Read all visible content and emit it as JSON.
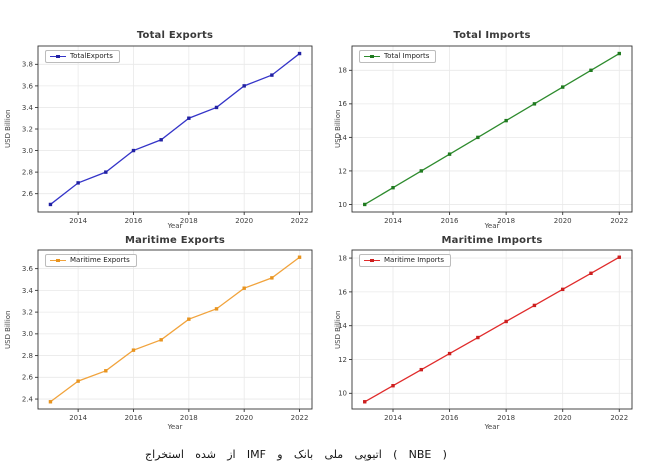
{
  "figure": {
    "background": "#ffffff",
    "colors": {
      "grid": "#e9e9e9",
      "spine": "#333333",
      "tick_label": "#3d3d3d",
      "title": "#3a3a3a"
    },
    "caption": {
      "text": "استخراج شده از IMF و بانک ملی اتیوپی ( NBE )",
      "words": [
        "استخراج",
        "شده",
        "از",
        "IMF",
        "و",
        "بانک",
        "ملی",
        "اتیوپی",
        "(",
        "NBE",
        ")"
      ]
    }
  },
  "chart_data": [
    {
      "type": "line",
      "title": "Total Exports",
      "legend": "TotalExports",
      "legend_position": "upper left",
      "xlabel": "Year",
      "ylabel": "USD Billion",
      "x": [
        2013,
        2014,
        2015,
        2016,
        2017,
        2018,
        2019,
        2020,
        2021,
        2022
      ],
      "series": [
        {
          "name": "TotalExports",
          "values": [
            2.5,
            2.7,
            2.8,
            3.0,
            3.1,
            3.3,
            3.4,
            3.6,
            3.7,
            3.9
          ]
        }
      ],
      "line_color": "#3434c8",
      "marker_color": "#2121a3",
      "marker": "square",
      "grid": true,
      "xticks": [
        2014,
        2016,
        2018,
        2020,
        2022
      ],
      "yticks": [
        2.6,
        2.8,
        3.0,
        3.2,
        3.4,
        3.6,
        3.8
      ],
      "xlim": [
        2012.55,
        2022.45
      ],
      "ylim": [
        2.43,
        3.97
      ]
    },
    {
      "type": "line",
      "title": "Total Imports",
      "legend": "Total Imports",
      "legend_position": "upper left",
      "xlabel": "Year",
      "ylabel": "USD Billion",
      "x": [
        2013,
        2014,
        2015,
        2016,
        2017,
        2018,
        2019,
        2020,
        2021,
        2022
      ],
      "series": [
        {
          "name": "Total Imports",
          "values": [
            10,
            11,
            12,
            13,
            14,
            15,
            16,
            17,
            18,
            19
          ]
        }
      ],
      "line_color": "#2e8b2e",
      "marker_color": "#1f7a1f",
      "marker": "square",
      "grid": true,
      "xticks": [
        2014,
        2016,
        2018,
        2020,
        2022
      ],
      "yticks": [
        10,
        12,
        14,
        16,
        18
      ],
      "xlim": [
        2012.55,
        2022.45
      ],
      "ylim": [
        9.55,
        19.45
      ]
    },
    {
      "type": "line",
      "title": "Maritime Exports",
      "legend": "Maritime Exports",
      "legend_position": "upper left",
      "xlabel": "Year",
      "ylabel": "USD Billion",
      "x": [
        2013,
        2014,
        2015,
        2016,
        2017,
        2018,
        2019,
        2020,
        2021,
        2022
      ],
      "series": [
        {
          "name": "Maritime Exports",
          "values": [
            2.375,
            2.565,
            2.66,
            2.85,
            2.945,
            3.135,
            3.23,
            3.42,
            3.515,
            3.705
          ]
        }
      ],
      "line_color": "#f1a33c",
      "marker_color": "#e8941f",
      "marker": "square",
      "grid": true,
      "xticks": [
        2014,
        2016,
        2018,
        2020,
        2022
      ],
      "yticks": [
        2.4,
        2.6,
        2.8,
        3.0,
        3.2,
        3.4,
        3.6
      ],
      "xlim": [
        2012.55,
        2022.45
      ],
      "ylim": [
        2.3085,
        3.7715
      ]
    },
    {
      "type": "line",
      "title": "Maritime Imports",
      "legend": "Maritime Imports",
      "legend_position": "upper left",
      "xlabel": "Year",
      "ylabel": "USD Billion",
      "x": [
        2013,
        2014,
        2015,
        2016,
        2017,
        2018,
        2019,
        2020,
        2021,
        2022
      ],
      "series": [
        {
          "name": "Maritime Imports",
          "values": [
            9.5,
            10.45,
            11.4,
            12.35,
            13.3,
            14.25,
            15.2,
            16.15,
            17.1,
            18.05
          ]
        }
      ],
      "line_color": "#e02b2b",
      "marker_color": "#cc1f1f",
      "marker": "square",
      "grid": true,
      "xticks": [
        2014,
        2016,
        2018,
        2020,
        2022
      ],
      "yticks": [
        10,
        12,
        14,
        16,
        18
      ],
      "xlim": [
        2012.55,
        2022.45
      ],
      "ylim": [
        9.0725,
        18.4775
      ]
    }
  ]
}
